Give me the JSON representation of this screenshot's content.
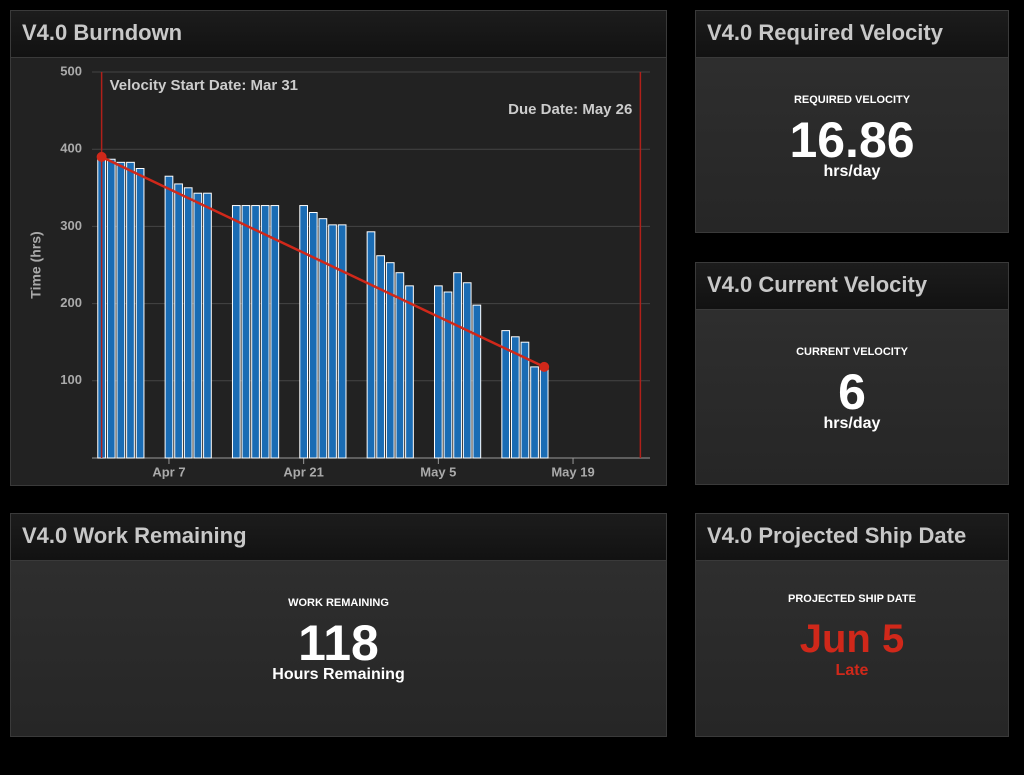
{
  "chart_data": {
    "type": "bar",
    "title": "V4.0 Burndown",
    "y_label": "Time (hrs)",
    "x": [
      "Mar 31",
      "Apr 1",
      "Apr 2",
      "Apr 3",
      "Apr 4",
      "Apr 7",
      "Apr 8",
      "Apr 9",
      "Apr 10",
      "Apr 11",
      "Apr 14",
      "Apr 15",
      "Apr 16",
      "Apr 17",
      "Apr 18",
      "Apr 21",
      "Apr 22",
      "Apr 23",
      "Apr 24",
      "Apr 25",
      "Apr 28",
      "Apr 29",
      "Apr 30",
      "May 1",
      "May 2",
      "May 5",
      "May 6",
      "May 7",
      "May 8",
      "May 9",
      "May 12",
      "May 13",
      "May 14",
      "May 15",
      "May 16"
    ],
    "values": [
      390,
      387,
      383,
      383,
      375,
      365,
      355,
      350,
      343,
      343,
      327,
      327,
      327,
      327,
      327,
      327,
      318,
      310,
      302,
      302,
      293,
      262,
      253,
      240,
      223,
      223,
      215,
      240,
      227,
      198,
      165,
      157,
      150,
      118,
      118
    ],
    "color": "#1a6cb4",
    "xlim": [
      "Mar 30",
      "May 27"
    ],
    "xticks": [
      "Apr 7",
      "Apr 21",
      "May 5",
      "May 19"
    ],
    "ylim": [
      0,
      500
    ],
    "yticks": [
      100,
      200,
      300,
      400,
      500
    ],
    "grid": true,
    "trend": {
      "x": [
        "Mar 31",
        "May 16"
      ],
      "values": [
        390,
        118
      ],
      "color": "#d0281a"
    },
    "annotations": [
      {
        "label": "Velocity Start Date: Mar 31",
        "x": "Mar 31",
        "color": "#b0201a"
      },
      {
        "label": "Due Date: May 26",
        "x": "May 26",
        "color": "#b0201a"
      }
    ]
  },
  "panels": [
    {
      "title": "V4.0 Required Velocity",
      "label": "REQUIRED VELOCITY",
      "value": 16.86,
      "unit": "hrs/day",
      "color": "#ffffff"
    },
    {
      "title": "V4.0 Current Velocity",
      "label": "CURRENT VELOCITY",
      "value": 6,
      "unit": "hrs/day",
      "color": "#ffffff"
    },
    {
      "title": "V4.0 Work Remaining",
      "label": "WORK REMAINING",
      "value": 118,
      "unit": "Hours Remaining",
      "color": "#ffffff"
    },
    {
      "title": "V4.0 Projected Ship Date",
      "label": "PROJECTED SHIP DATE",
      "value": "Jun 5",
      "unit": "Late",
      "color": "#d0281a"
    }
  ]
}
